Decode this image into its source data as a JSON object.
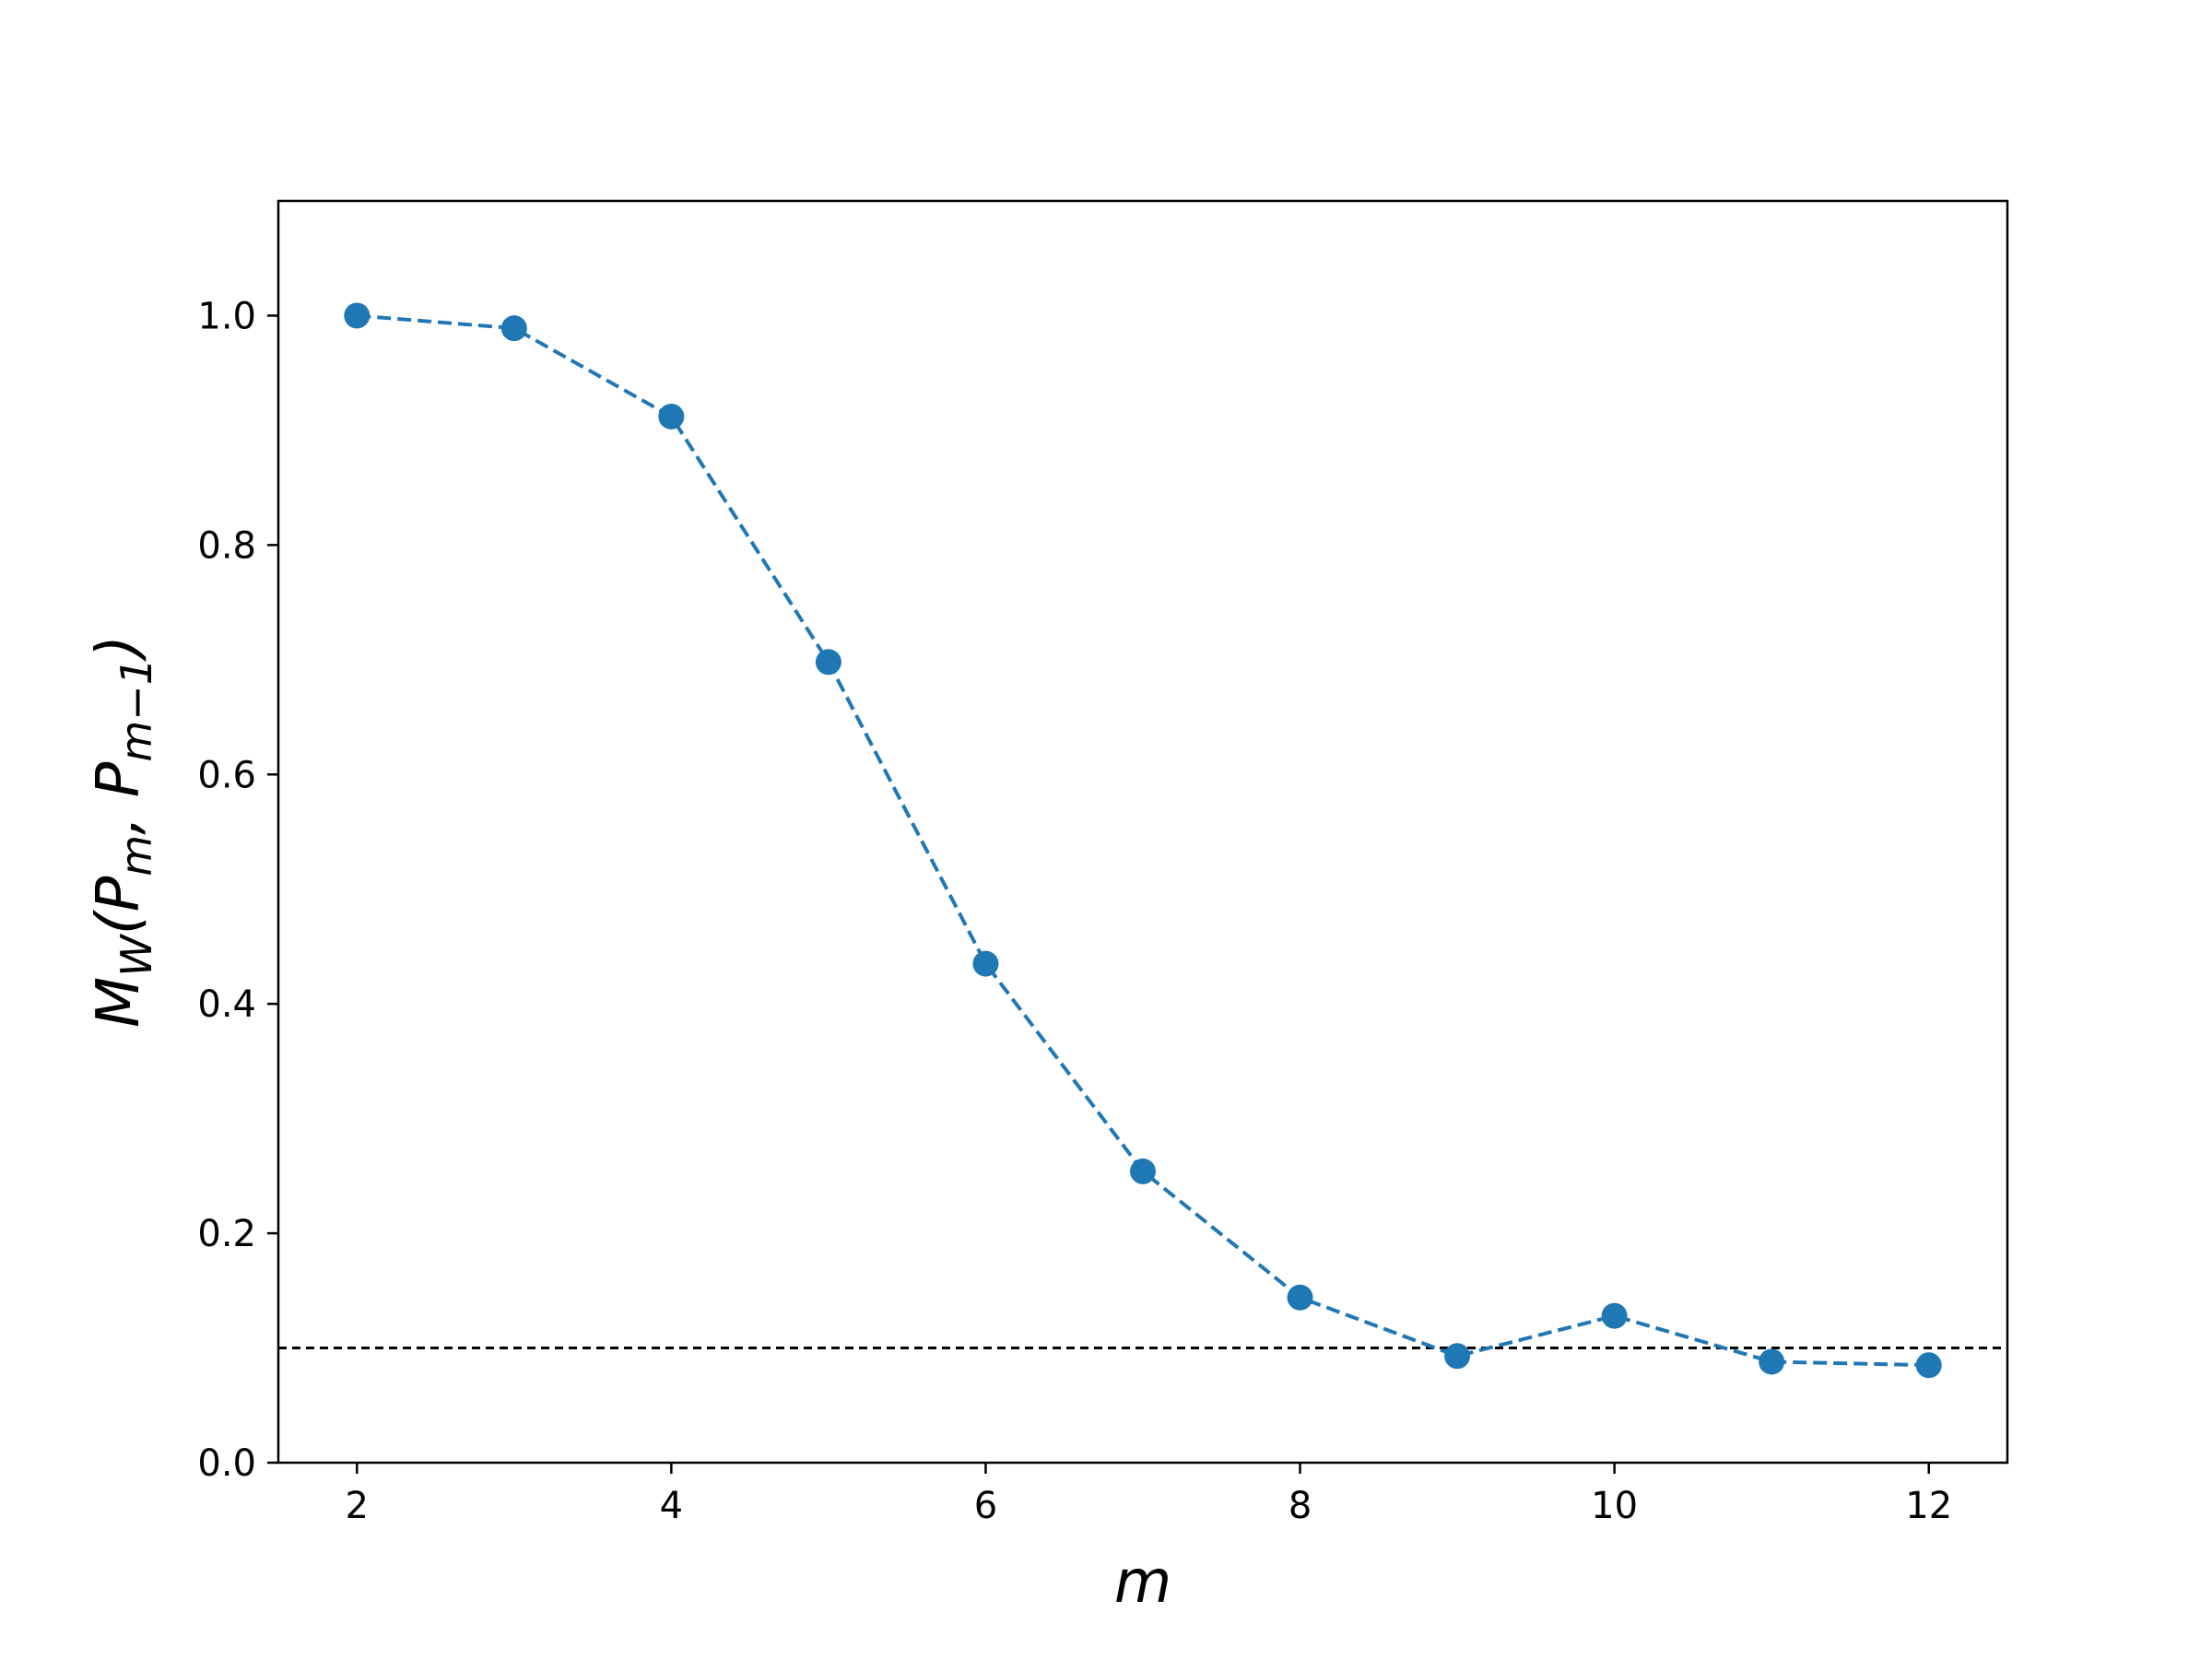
{
  "chart_data": {
    "type": "line",
    "title": "",
    "xlabel": "m",
    "ylabel": {
      "main": "M",
      "sub_w": "W",
      "open": "(",
      "p1": "P",
      "sub_m": "m",
      "comma": ", ",
      "p2": "P",
      "sub_m1": "m−1",
      "close": ")"
    },
    "xlim": [
      1.5,
      12.5
    ],
    "ylim": [
      0.0,
      1.1
    ],
    "xticks": [
      2,
      4,
      6,
      8,
      10,
      12
    ],
    "xtick_labels": [
      "2",
      "4",
      "6",
      "8",
      "10",
      "12"
    ],
    "yticks": [
      0.0,
      0.2,
      0.4,
      0.6,
      0.8,
      1.0
    ],
    "ytick_labels": [
      "0.0",
      "0.2",
      "0.4",
      "0.6",
      "0.8",
      "1.0"
    ],
    "grid": false,
    "series": [
      {
        "x": [
          2,
          3,
          4,
          5,
          6,
          7,
          8,
          9,
          10,
          11,
          12
        ],
        "y": [
          1.0,
          0.989,
          0.912,
          0.698,
          0.435,
          0.254,
          0.144,
          0.093,
          0.128,
          0.088,
          0.085
        ],
        "line_style": "dashed",
        "marker": "circle",
        "color": "#1f77b4"
      }
    ],
    "reference_line": {
      "y": 0.1,
      "line_style": "dashed",
      "color": "#000000"
    }
  }
}
